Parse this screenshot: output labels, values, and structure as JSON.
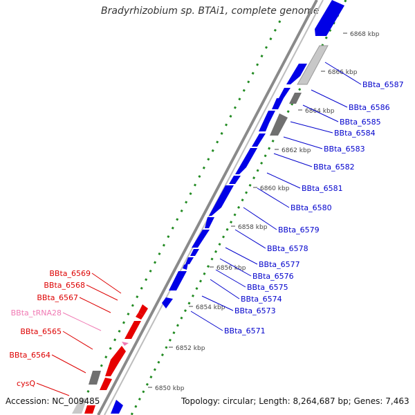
{
  "title": "Bradyrhizobium sp. BTAi1, complete genome",
  "footer": {
    "accession": "Accession: NC_009485",
    "summary": "Topology: circular; Length: 8,264,687 bp; Genes: 7,463"
  },
  "colors": {
    "forward_gene": "#0000e6",
    "reverse_gene": "#e60000",
    "trna": "#f07ab4",
    "pseudo_dark": "#707070",
    "pseudo_light": "#c8c8c8",
    "backbone": "#8a8a8a",
    "gc_tick": "#228b22",
    "label_forward": "#0000cc",
    "label_reverse": "#dd0000"
  },
  "scale_ticks": [
    "6868 kbp",
    "6866 kbp",
    "6864 kbp",
    "6862 kbp",
    "6860 kbp",
    "6858 kbp",
    "6856 kbp",
    "6854 kbp",
    "6852 kbp",
    "6850 kbp"
  ],
  "right_labels": [
    "BBta_6587",
    "BBta_6586",
    "BBta_6585",
    "BBta_6584",
    "BBta_6583",
    "BBta_6582",
    "BBta_6581",
    "BBta_6580",
    "BBta_6579",
    "BBta_6578",
    "BBta_6577",
    "BBta_6576",
    "BBta_6575",
    "BBta_6574",
    "BBta_6573",
    "BBta_6571"
  ],
  "left_labels": [
    {
      "text": "BBta_6569",
      "kind": "gene"
    },
    {
      "text": "BBta_6568",
      "kind": "gene"
    },
    {
      "text": "BBta_6567",
      "kind": "gene"
    },
    {
      "text": "BBta_tRNA28",
      "kind": "trna"
    },
    {
      "text": "BBta_6565",
      "kind": "gene"
    },
    {
      "text": "BBta_6564",
      "kind": "gene"
    },
    {
      "text": "cysQ",
      "kind": "gene"
    }
  ]
}
